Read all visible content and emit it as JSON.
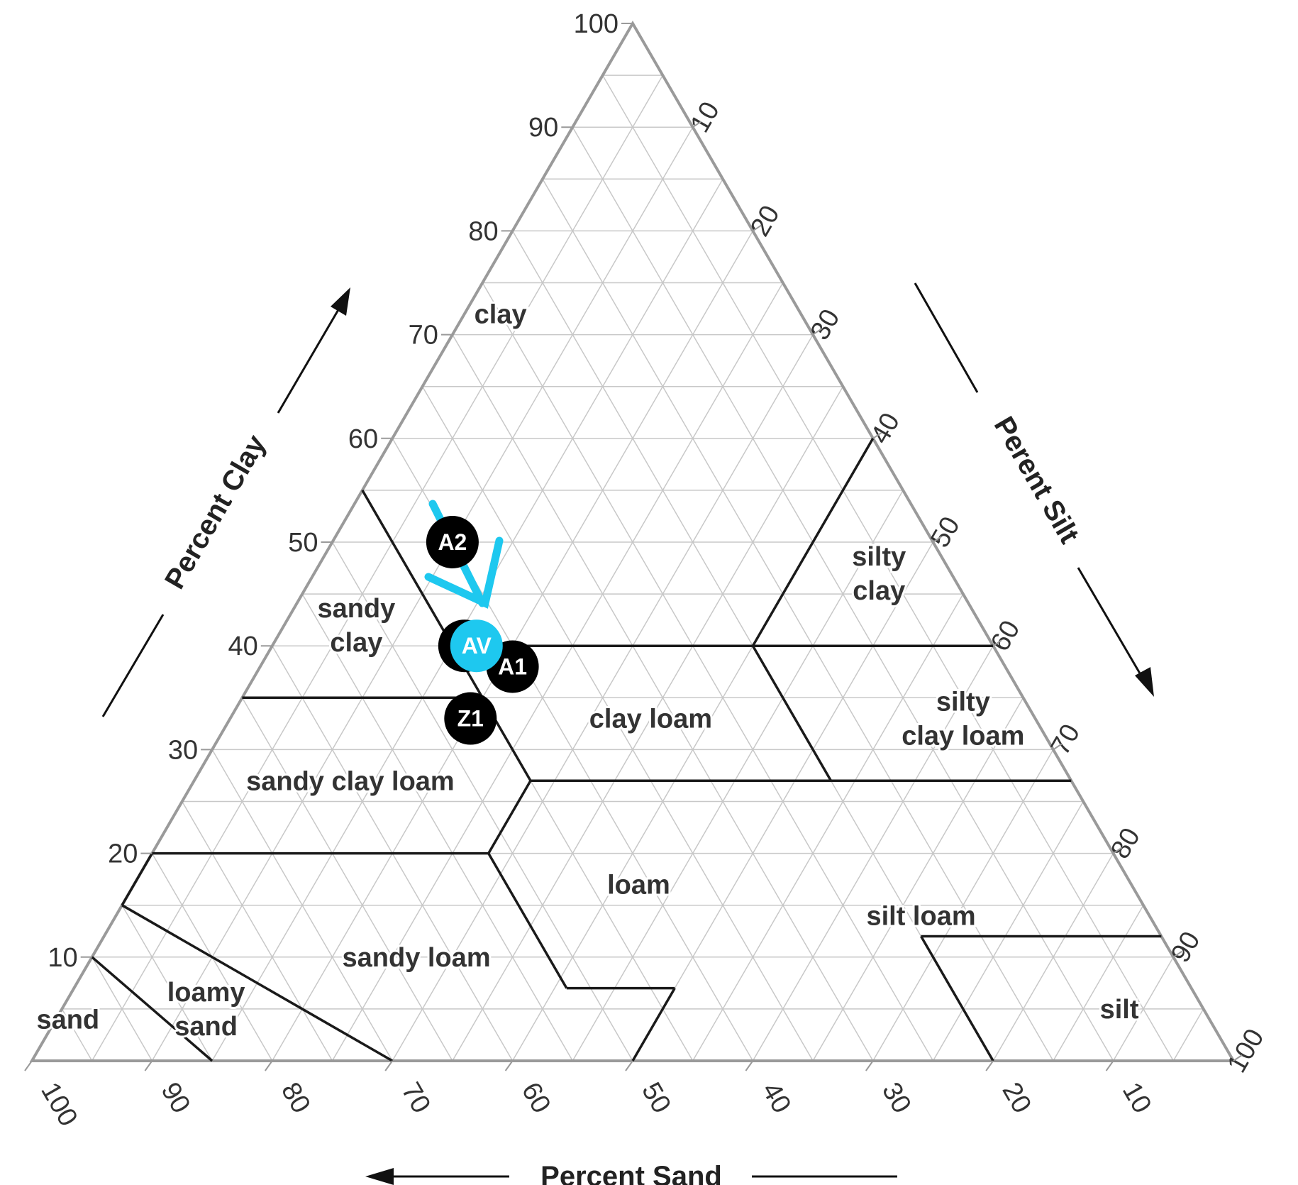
{
  "chart_data": {
    "type": "ternary",
    "title": "",
    "axes": {
      "clay": {
        "label": "Percent Clay",
        "ticks": [
          "10",
          "20",
          "30",
          "40",
          "50",
          "60",
          "70",
          "80",
          "90",
          "100"
        ]
      },
      "silt": {
        "label": "Perent Silt",
        "ticks": [
          "10",
          "20",
          "30",
          "40",
          "50",
          "60",
          "70",
          "80",
          "90",
          "100"
        ]
      },
      "sand": {
        "label": "Percent Sand",
        "ticks": [
          "100",
          "90",
          "80",
          "70",
          "60",
          "50",
          "40",
          "30",
          "20",
          "10"
        ]
      }
    },
    "grid": true,
    "grid_step": 5,
    "regions": [
      {
        "name": "clay",
        "lines": [
          "clay"
        ],
        "sand": 25,
        "clay": 72
      },
      {
        "name": "sandy clay",
        "lines": [
          "sandy",
          "clay"
        ],
        "sand": 52,
        "clay": 42
      },
      {
        "name": "silty clay",
        "lines": [
          "silty",
          "clay"
        ],
        "sand": 6,
        "clay": 47
      },
      {
        "name": "silty clay loam",
        "lines": [
          "silty",
          "clay loam"
        ],
        "sand": 6,
        "clay": 33
      },
      {
        "name": "clay loam",
        "lines": [
          "clay loam"
        ],
        "sand": 32,
        "clay": 33
      },
      {
        "name": "sandy clay loam",
        "lines": [
          "sandy clay loam"
        ],
        "sand": 60,
        "clay": 27
      },
      {
        "name": "loam",
        "lines": [
          "loam"
        ],
        "sand": 41,
        "clay": 17
      },
      {
        "name": "silt loam",
        "lines": [
          "silt loam"
        ],
        "sand": 19,
        "clay": 14
      },
      {
        "name": "sandy loam",
        "lines": [
          "sandy loam"
        ],
        "sand": 63,
        "clay": 10
      },
      {
        "name": "loamy sand",
        "lines": [
          "loamy",
          "sand"
        ],
        "sand": 83,
        "clay": 5
      },
      {
        "name": "sand",
        "lines": [
          "sand"
        ],
        "sand": 95,
        "clay": 4
      },
      {
        "name": "silt",
        "lines": [
          "silt"
        ],
        "sand": 7,
        "clay": 5
      }
    ],
    "points": [
      {
        "label": "A2",
        "sand": 40,
        "silt": 10,
        "clay": 50,
        "color": "#000000"
      },
      {
        "label": "Z",
        "sand": 44,
        "silt": 16,
        "clay": 40,
        "color": "#000000"
      },
      {
        "label": "AV",
        "sand": 43,
        "silt": 17,
        "clay": 40,
        "color": "#1ec8ef"
      },
      {
        "label": "A1",
        "sand": 41,
        "silt": 21,
        "clay": 38,
        "color": "#000000"
      },
      {
        "label": "Z1",
        "sand": 47,
        "silt": 20,
        "clay": 33,
        "color": "#000000"
      }
    ],
    "annotation": {
      "shape": "arrow",
      "points_to": "AV",
      "color": "#1ec8ef"
    },
    "colors": {
      "grid": "#c8c8c8",
      "frame": "#9a9a9a",
      "boundary": "#1a1a1a",
      "text": "#333333"
    }
  }
}
